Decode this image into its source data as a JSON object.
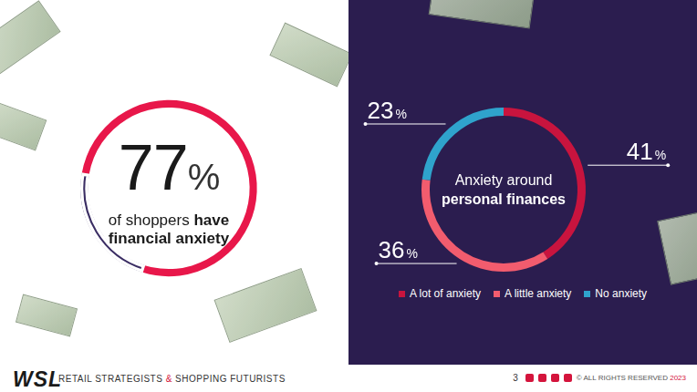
{
  "chart_data": [
    {
      "type": "gauge",
      "title": "of shoppers have financial anxiety",
      "values": [
        77
      ],
      "value_labels": [
        "77%"
      ],
      "ylim": [
        0,
        100
      ],
      "color": "#e8174a",
      "data_labels": true
    },
    {
      "type": "doughnut",
      "title": "Anxiety around personal finances",
      "categories": [
        "A lot of anxiety",
        "A little anxiety",
        "No anxiety"
      ],
      "values": [
        41,
        36,
        23
      ],
      "value_labels": [
        "41%",
        "36%",
        "23%"
      ],
      "colors": [
        "#c8143e",
        "#f25c6e",
        "#2fa3cc"
      ],
      "legend": "bottom",
      "data_labels": true
    }
  ],
  "footer": {
    "logo": "WSL",
    "tagline": "RETAIL STRATEGISTS & SHOPPING FUTURISTS",
    "page": 3,
    "copyright": "© ALL RIGHTS RESERVED 2023"
  }
}
